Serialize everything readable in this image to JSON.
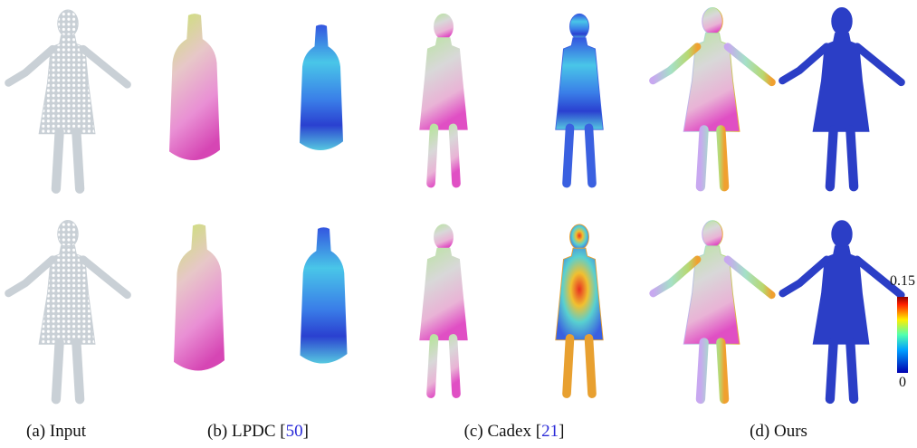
{
  "captions": [
    {
      "parts": [
        "(a) Input"
      ]
    },
    {
      "parts": [
        "(b) LPDC [",
        "50",
        "]"
      ]
    },
    {
      "parts": [
        "(c) Cadex [",
        "21",
        "]"
      ]
    },
    {
      "parts": [
        "(d) Ours"
      ]
    }
  ],
  "colorbar": {
    "max": "0.15",
    "min": "0"
  }
}
